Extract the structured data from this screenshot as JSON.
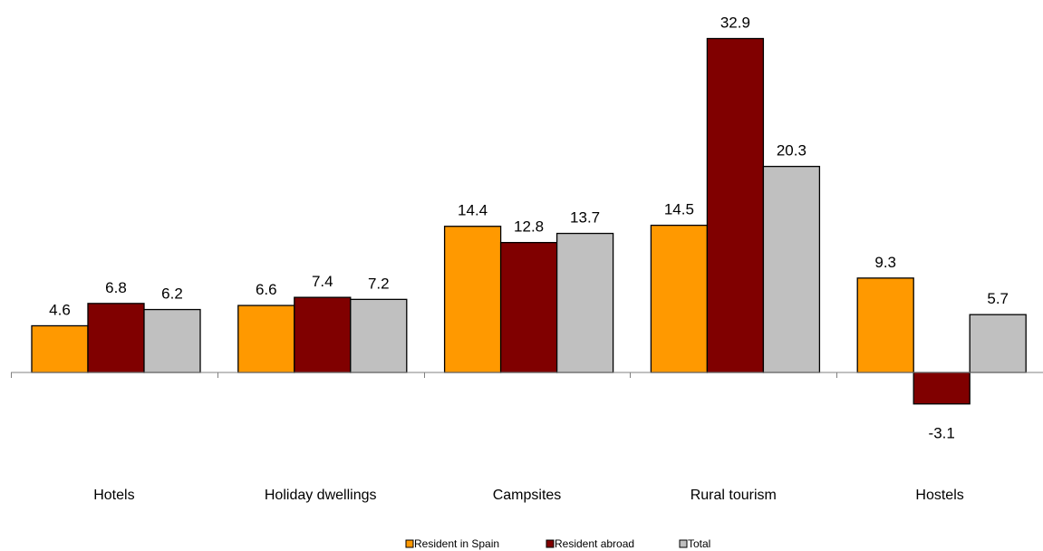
{
  "chart_data": {
    "type": "bar",
    "categories": [
      "Hotels",
      "Holiday dwellings",
      "Campsites",
      "Rural tourism",
      "Hostels"
    ],
    "series": [
      {
        "name": "Resident in Spain",
        "color": "#FF9900",
        "values": [
          4.6,
          6.6,
          14.4,
          14.5,
          9.3
        ]
      },
      {
        "name": "Resident abroad",
        "color": "#800000",
        "values": [
          6.8,
          7.4,
          12.8,
          32.9,
          -3.1
        ]
      },
      {
        "name": "Total",
        "color": "#C0C0C0",
        "values": [
          6.2,
          7.2,
          13.7,
          20.3,
          5.7
        ]
      }
    ],
    "title": "",
    "xlabel": "",
    "ylabel": "",
    "ylim": [
      -6.5,
      36
    ],
    "grid": false,
    "legend_position": "bottom"
  }
}
